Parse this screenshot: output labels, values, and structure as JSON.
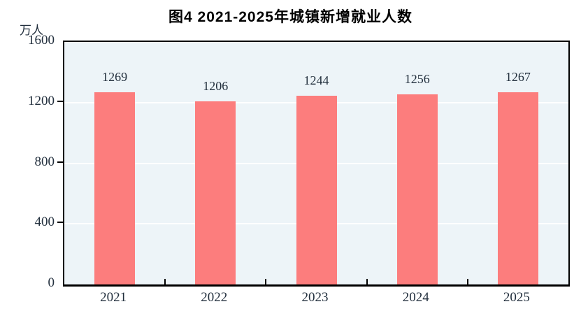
{
  "chart": {
    "title": "图4  2021-2025年城镇新增就业人数",
    "unit_label": "万人"
  },
  "chart_data": {
    "type": "bar",
    "title": "图4 2021-2025年城镇新增就业人数",
    "categories": [
      "2021",
      "2022",
      "2023",
      "2024",
      "2025"
    ],
    "values": [
      1269,
      1206,
      1244,
      1256,
      1267
    ],
    "value_labels": [
      "1269",
      "1206",
      "1244",
      "1256",
      "1267"
    ],
    "xlabel": "",
    "ylabel": "万人",
    "ylim": [
      0,
      1600
    ],
    "yticks": [
      0,
      400,
      800,
      1200,
      1600
    ],
    "grid": true,
    "legend": "none",
    "bar_color": "#fc7d7d",
    "plot_bg_color": "#edf4f8",
    "gridline_color": "#ffffff",
    "axis_text_color": "#222f3d",
    "title_color": "#000000"
  }
}
